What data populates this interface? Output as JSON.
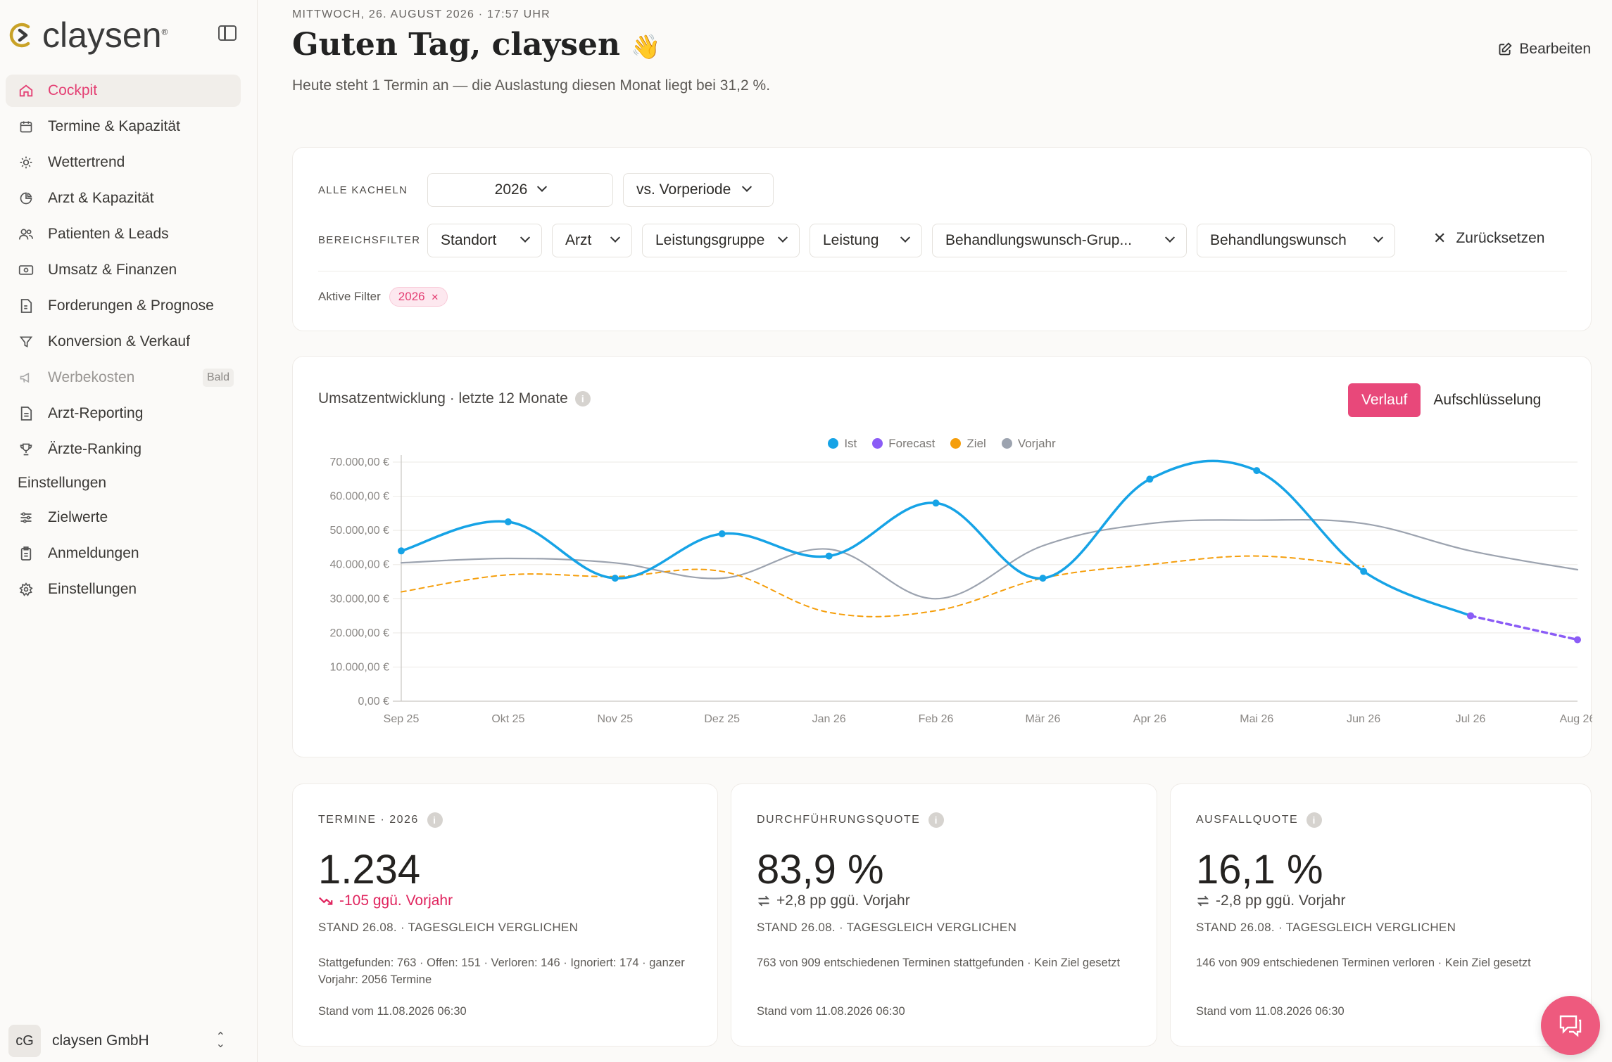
{
  "brand": {
    "name": "claysen",
    "mark": "®"
  },
  "nav": {
    "items": [
      {
        "label": "Cockpit",
        "icon": "home-icon",
        "active": true
      },
      {
        "label": "Termine & Kapazität",
        "icon": "calendar-icon"
      },
      {
        "label": "Wettertrend",
        "icon": "sun-icon"
      },
      {
        "label": "Arzt & Kapazität",
        "icon": "pie-chart-icon"
      },
      {
        "label": "Patienten & Leads",
        "icon": "users-icon"
      },
      {
        "label": "Umsatz & Finanzen",
        "icon": "banknote-icon"
      },
      {
        "label": "Forderungen & Prognose",
        "icon": "file-euro-icon"
      },
      {
        "label": "Konversion & Verkauf",
        "icon": "funnel-icon"
      },
      {
        "label": "Werbekosten",
        "icon": "megaphone-icon",
        "badge": "Bald",
        "disabled": true
      },
      {
        "label": "Arzt-Reporting",
        "icon": "document-icon"
      },
      {
        "label": "Ärzte-Ranking",
        "icon": "trophy-icon"
      }
    ],
    "section": "Einstellungen",
    "settings": [
      {
        "label": "Zielwerte",
        "icon": "sliders-icon"
      },
      {
        "label": "Anmeldungen",
        "icon": "clipboard-icon"
      },
      {
        "label": "Einstellungen",
        "icon": "gear-icon"
      }
    ]
  },
  "org": {
    "initials": "cG",
    "name": "claysen GmbH"
  },
  "header": {
    "date": "MITTWOCH, 26. AUGUST 2026 · 17:57 UHR",
    "greeting": "Guten Tag, claysen",
    "emoji": "👋",
    "subtitle": "Heute steht 1 Termin an — die Auslastung diesen Monat liegt bei 31,2 %.",
    "edit_label": "Bearbeiten"
  },
  "filters": {
    "all_tiles_label": "ALLE KACHELN",
    "year": "2026",
    "compare": "vs. Vorperiode",
    "area_label": "BEREICHSFILTER",
    "area": [
      "Standort",
      "Arzt",
      "Leistungsgruppe",
      "Leistung",
      "Behandlungswunsch-Grup...",
      "Behandlungswunsch"
    ],
    "reset_label": "Zurücksetzen",
    "active_label": "Aktive Filter",
    "active_chip": "2026"
  },
  "chart_card": {
    "title": "Umsatzentwicklung · letzte 12 Monate",
    "toggle_on": "Verlauf",
    "toggle_off": "Aufschlüsselung"
  },
  "chart_data": {
    "type": "line",
    "categories": [
      "Sep 25",
      "Okt 25",
      "Nov 25",
      "Dez 25",
      "Jan 26",
      "Feb 26",
      "Mär 26",
      "Apr 26",
      "Mai 26",
      "Jun 26",
      "Jul 26",
      "Aug 26"
    ],
    "y_ticks": [
      "0,00 €",
      "10.000,00 €",
      "20.000,00 €",
      "30.000,00 €",
      "40.000,00 €",
      "50.000,00 €",
      "60.000,00 €",
      "70.000,00 €"
    ],
    "ylim": [
      0,
      70000
    ],
    "grid": true,
    "legend_position": "top-center",
    "series": [
      {
        "name": "Ist",
        "color": "#16a3e6",
        "values": [
          44000,
          52500,
          36000,
          49000,
          42500,
          58000,
          36000,
          65000,
          67500,
          38000,
          25000,
          null
        ]
      },
      {
        "name": "Forecast",
        "color": "#8b5cf6",
        "values": [
          null,
          null,
          null,
          null,
          null,
          null,
          null,
          null,
          null,
          null,
          25000,
          18000
        ]
      },
      {
        "name": "Ziel",
        "color": "#f59e0b",
        "values": [
          32000,
          37000,
          36500,
          38000,
          26000,
          26500,
          36000,
          40000,
          42500,
          39500,
          null,
          null
        ]
      },
      {
        "name": "Vorjahr",
        "color": "#9ca3af",
        "values": [
          40500,
          41800,
          40500,
          36000,
          44500,
          30000,
          45500,
          52000,
          53000,
          52000,
          44000,
          38500
        ]
      }
    ]
  },
  "kpis": [
    {
      "label": "TERMINE · 2026",
      "value": "1.234",
      "delta": "-105 ggü. Vorjahr",
      "delta_kind": "neg",
      "delta_icon": "trend-down-icon",
      "stand": "STAND 26.08. · TAGESGLEICH VERGLICHEN",
      "detail": "Stattgefunden: 763 · Offen: 151 · Verloren: 146 · Ignoriert: 174 · ganzer Vorjahr: 2056 Termine",
      "foot": "Stand vom 11.08.2026 06:30"
    },
    {
      "label": "DURCHFÜHRUNGSQUOTE",
      "value": "83,9 %",
      "delta": "+2,8 pp ggü. Vorjahr",
      "delta_kind": "neu",
      "delta_icon": "arrows-swap-icon",
      "stand": "STAND 26.08. · TAGESGLEICH VERGLICHEN",
      "detail": "763 von 909 entschiedenen Terminen stattgefunden · Kein Ziel gesetzt",
      "foot": "Stand vom 11.08.2026 06:30"
    },
    {
      "label": "AUSFALLQUOTE",
      "value": "16,1 %",
      "delta": "-2,8 pp ggü. Vorjahr",
      "delta_kind": "neu",
      "delta_icon": "arrows-swap-icon",
      "stand": "STAND 26.08. · TAGESGLEICH VERGLICHEN",
      "detail": "146 von 909 entschiedenen Terminen verloren · Kein Ziel gesetzt",
      "foot": "Stand vom 11.08.2026 06:30"
    }
  ]
}
